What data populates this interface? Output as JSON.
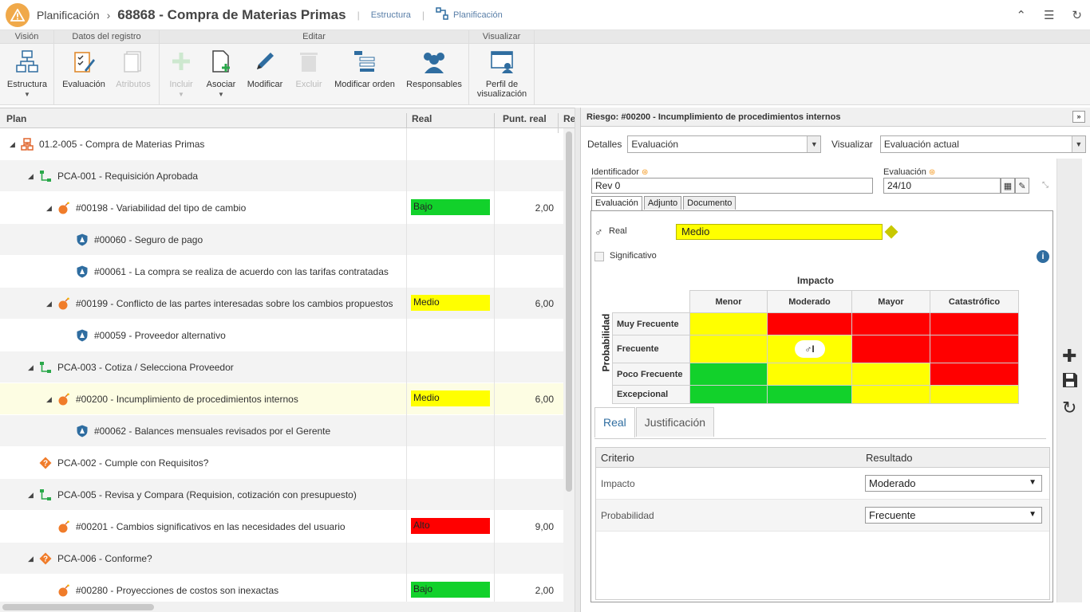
{
  "header": {
    "module": "Planificación",
    "title": "68868 - Compra de Materias Primas",
    "link_structure": "Estructura",
    "link_planning": "Planificación"
  },
  "ribbon": {
    "groups": {
      "vision": "Visión",
      "record_data": "Datos del registro",
      "edit": "Editar",
      "view": "Visualizar"
    },
    "buttons": {
      "structure": "Estructura",
      "evaluation": "Evaluación",
      "attributes": "Atributos",
      "include": "Incluir",
      "associate": "Asociar",
      "modify": "Modificar",
      "delete": "Excluir",
      "modify_order": "Modificar orden",
      "responsible": "Responsables",
      "view_profile_l1": "Perfil de",
      "view_profile_l2": "visualización"
    }
  },
  "grid": {
    "columns": [
      "Plan",
      "Real",
      "Punt. real",
      "Re"
    ],
    "rows": [
      {
        "label": "01.2-005 - Compra de Materias Primas",
        "real": "",
        "score": ""
      },
      {
        "label": "PCA-001 - Requisición Aprobada",
        "real": "",
        "score": ""
      },
      {
        "label": "#00198 - Variabilidad del tipo de cambio",
        "real": "Bajo",
        "score": "2,00"
      },
      {
        "label": "#00060 - Seguro de pago",
        "real": "",
        "score": ""
      },
      {
        "label": "#00061 - La compra se realiza de acuerdo con las tarifas contratadas",
        "real": "",
        "score": ""
      },
      {
        "label": "#00199 - Conflicto de las partes interesadas sobre los cambios propuestos",
        "real": "Medio",
        "score": "6,00"
      },
      {
        "label": "#00059 - Proveedor alternativo",
        "real": "",
        "score": ""
      },
      {
        "label": "PCA-003 - Cotiza / Selecciona Proveedor",
        "real": "",
        "score": ""
      },
      {
        "label": "#00200 - Incumplimiento de procedimientos internos",
        "real": "Medio",
        "score": "6,00"
      },
      {
        "label": "#00062 - Balances mensuales revisados por el Gerente",
        "real": "",
        "score": ""
      },
      {
        "label": "PCA-002 - Cumple con Requisitos?",
        "real": "",
        "score": ""
      },
      {
        "label": "PCA-005 - Revisa y Compara (Requision, cotización con presupuesto)",
        "real": "",
        "score": ""
      },
      {
        "label": "#00201 - Cambios significativos en las necesidades del usuario",
        "real": "Alto",
        "score": "9,00"
      },
      {
        "label": "PCA-006 - Conforme?",
        "real": "",
        "score": ""
      },
      {
        "label": "#00280 - Proyecciones de costos son inexactas",
        "real": "Bajo",
        "score": "2,00"
      }
    ]
  },
  "panel": {
    "title": "Riesgo: #00200 - Incumplimiento de procedimientos internos",
    "details_label": "Detalles",
    "details_value": "Evaluación",
    "view_label": "Visualizar",
    "view_value": "Evaluación actual",
    "identifier_label": "Identificador",
    "identifier_value": "Rev 0",
    "evaluation_label": "Evaluación",
    "evaluation_value": "24/10",
    "tabs": [
      "Evaluación",
      "Adjunto",
      "Documento"
    ],
    "real_label": "Real",
    "real_value": "Medio",
    "significant_label": "Significativo",
    "matrix": {
      "impact_title": "Impacto",
      "probability_title": "Probabilidad",
      "impact_cols": [
        "Menor",
        "Moderado",
        "Mayor",
        "Catastrófico"
      ],
      "probability_rows": [
        "Muy Frecuente",
        "Frecuente",
        "Poco Frecuente",
        "Excepcional"
      ],
      "cells": [
        [
          "y",
          "r",
          "r",
          "r"
        ],
        [
          "y",
          "y",
          "r",
          "r"
        ],
        [
          "g",
          "y",
          "y",
          "r"
        ],
        [
          "g",
          "g",
          "y",
          "y"
        ]
      ],
      "marker_row": 1,
      "marker_col": 1,
      "marker_text": "I"
    },
    "subtabs": [
      "Real",
      "Justificación"
    ],
    "criteria_head": [
      "Criterio",
      "Resultado"
    ],
    "criteria": [
      {
        "name": "Impacto",
        "value": "Moderado"
      },
      {
        "name": "Probabilidad",
        "value": "Frecuente"
      }
    ]
  },
  "colors": {
    "green": "#12d12b",
    "yellow": "#ffff00",
    "red": "#ff0000",
    "accent": "#2f6da0",
    "orange": "#f0a94a"
  }
}
